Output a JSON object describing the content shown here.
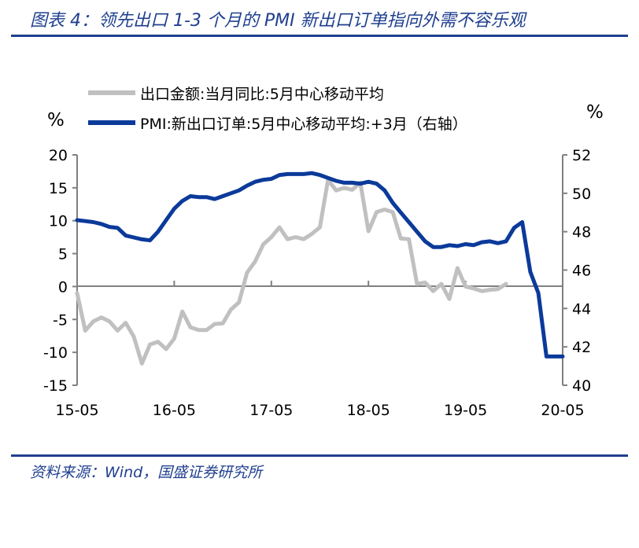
{
  "title": "图表 4：领先出口 1-3 个月的 PMI 新出口订单指向外需不容乐观",
  "source": "资料来源：Wind，国盛证券研究所",
  "chart_data": {
    "type": "line",
    "left_unit": "%",
    "right_unit": "%",
    "x_labels": [
      "15-05",
      "16-05",
      "17-05",
      "18-05",
      "19-05",
      "20-05"
    ],
    "y_left_ticks": [
      20,
      15,
      10,
      5,
      0,
      -5,
      -10,
      -15
    ],
    "y_right_ticks": [
      52,
      50,
      48,
      46,
      44,
      42,
      40
    ],
    "ylim_left": [
      -15,
      20
    ],
    "ylim_right": [
      40,
      52
    ],
    "colors": {
      "left_series": "#c0c0c0",
      "right_series": "#0b3a9a"
    },
    "series": [
      {
        "name": "出口金额:当月同比:5月中心移动平均",
        "axis": "left",
        "x": [
          "2015-05",
          "2015-06",
          "2015-07",
          "2015-08",
          "2015-09",
          "2015-10",
          "2015-11",
          "2015-12",
          "2016-01",
          "2016-02",
          "2016-03",
          "2016-04",
          "2016-05",
          "2016-06",
          "2016-07",
          "2016-08",
          "2016-09",
          "2016-10",
          "2016-11",
          "2016-12",
          "2017-01",
          "2017-02",
          "2017-03",
          "2017-04",
          "2017-05",
          "2017-06",
          "2017-07",
          "2017-08",
          "2017-09",
          "2017-10",
          "2017-11",
          "2017-12",
          "2018-01",
          "2018-02",
          "2018-03",
          "2018-04",
          "2018-05",
          "2018-06",
          "2018-07",
          "2018-08",
          "2018-09",
          "2018-10",
          "2018-11",
          "2018-12",
          "2019-01",
          "2019-02",
          "2019-03",
          "2019-04",
          "2019-05",
          "2019-06",
          "2019-07",
          "2019-08",
          "2019-09",
          "2019-10"
        ],
        "values": [
          -1,
          -6.7,
          -5.3,
          -4.7,
          -5.3,
          -6.7,
          -5.5,
          -7.6,
          -11.7,
          -8.8,
          -8.4,
          -9.5,
          -7.9,
          -3.8,
          -6.2,
          -6.6,
          -6.6,
          -5.7,
          -5.6,
          -3.5,
          -2.4,
          2.1,
          3.8,
          6.4,
          7.5,
          9.0,
          7.2,
          7.5,
          7.2,
          8.0,
          9.0,
          16.2,
          14.6,
          15.0,
          14.7,
          15.8,
          8.4,
          11.3,
          11.7,
          11.3,
          7.3,
          7.2,
          0.4,
          0.6,
          -0.7,
          0.4,
          -1.9,
          2.8,
          0.0,
          -0.3,
          -0.7,
          -0.5,
          -0.4,
          0.4
        ]
      },
      {
        "name": "PMI:新出口订单:5月中心移动平均:+3月（右轴）",
        "axis": "right",
        "x": [
          "2015-05",
          "2015-06",
          "2015-07",
          "2015-08",
          "2015-09",
          "2015-10",
          "2015-11",
          "2015-12",
          "2016-01",
          "2016-02",
          "2016-03",
          "2016-04",
          "2016-05",
          "2016-06",
          "2016-07",
          "2016-08",
          "2016-09",
          "2016-10",
          "2016-11",
          "2016-12",
          "2017-01",
          "2017-02",
          "2017-03",
          "2017-04",
          "2017-05",
          "2017-06",
          "2017-07",
          "2017-08",
          "2017-09",
          "2017-10",
          "2017-11",
          "2017-12",
          "2018-01",
          "2018-02",
          "2018-03",
          "2018-04",
          "2018-05",
          "2018-06",
          "2018-07",
          "2018-08",
          "2018-09",
          "2018-10",
          "2018-11",
          "2018-12",
          "2019-01",
          "2019-02",
          "2019-03",
          "2019-04",
          "2019-05",
          "2019-06",
          "2019-07",
          "2019-08",
          "2019-09",
          "2019-10",
          "2019-11",
          "2019-12",
          "2020-01",
          "2020-02",
          "2020-03",
          "2020-04",
          "2020-05"
        ],
        "values": [
          48.6,
          48.55,
          48.5,
          48.4,
          48.25,
          48.2,
          47.8,
          47.7,
          47.6,
          47.55,
          48.0,
          48.6,
          49.2,
          49.6,
          49.85,
          49.8,
          49.8,
          49.7,
          49.85,
          50.0,
          50.15,
          50.4,
          50.6,
          50.7,
          50.75,
          50.95,
          51.0,
          51.0,
          51.0,
          51.05,
          50.95,
          50.8,
          50.65,
          50.55,
          50.55,
          50.5,
          50.6,
          50.5,
          50.15,
          49.5,
          49.0,
          48.5,
          48.0,
          47.5,
          47.2,
          47.2,
          47.3,
          47.25,
          47.35,
          47.3,
          47.45,
          47.5,
          47.4,
          47.5,
          48.2,
          48.5,
          45.9,
          44.8,
          41.5,
          41.5,
          41.5
        ]
      }
    ]
  }
}
